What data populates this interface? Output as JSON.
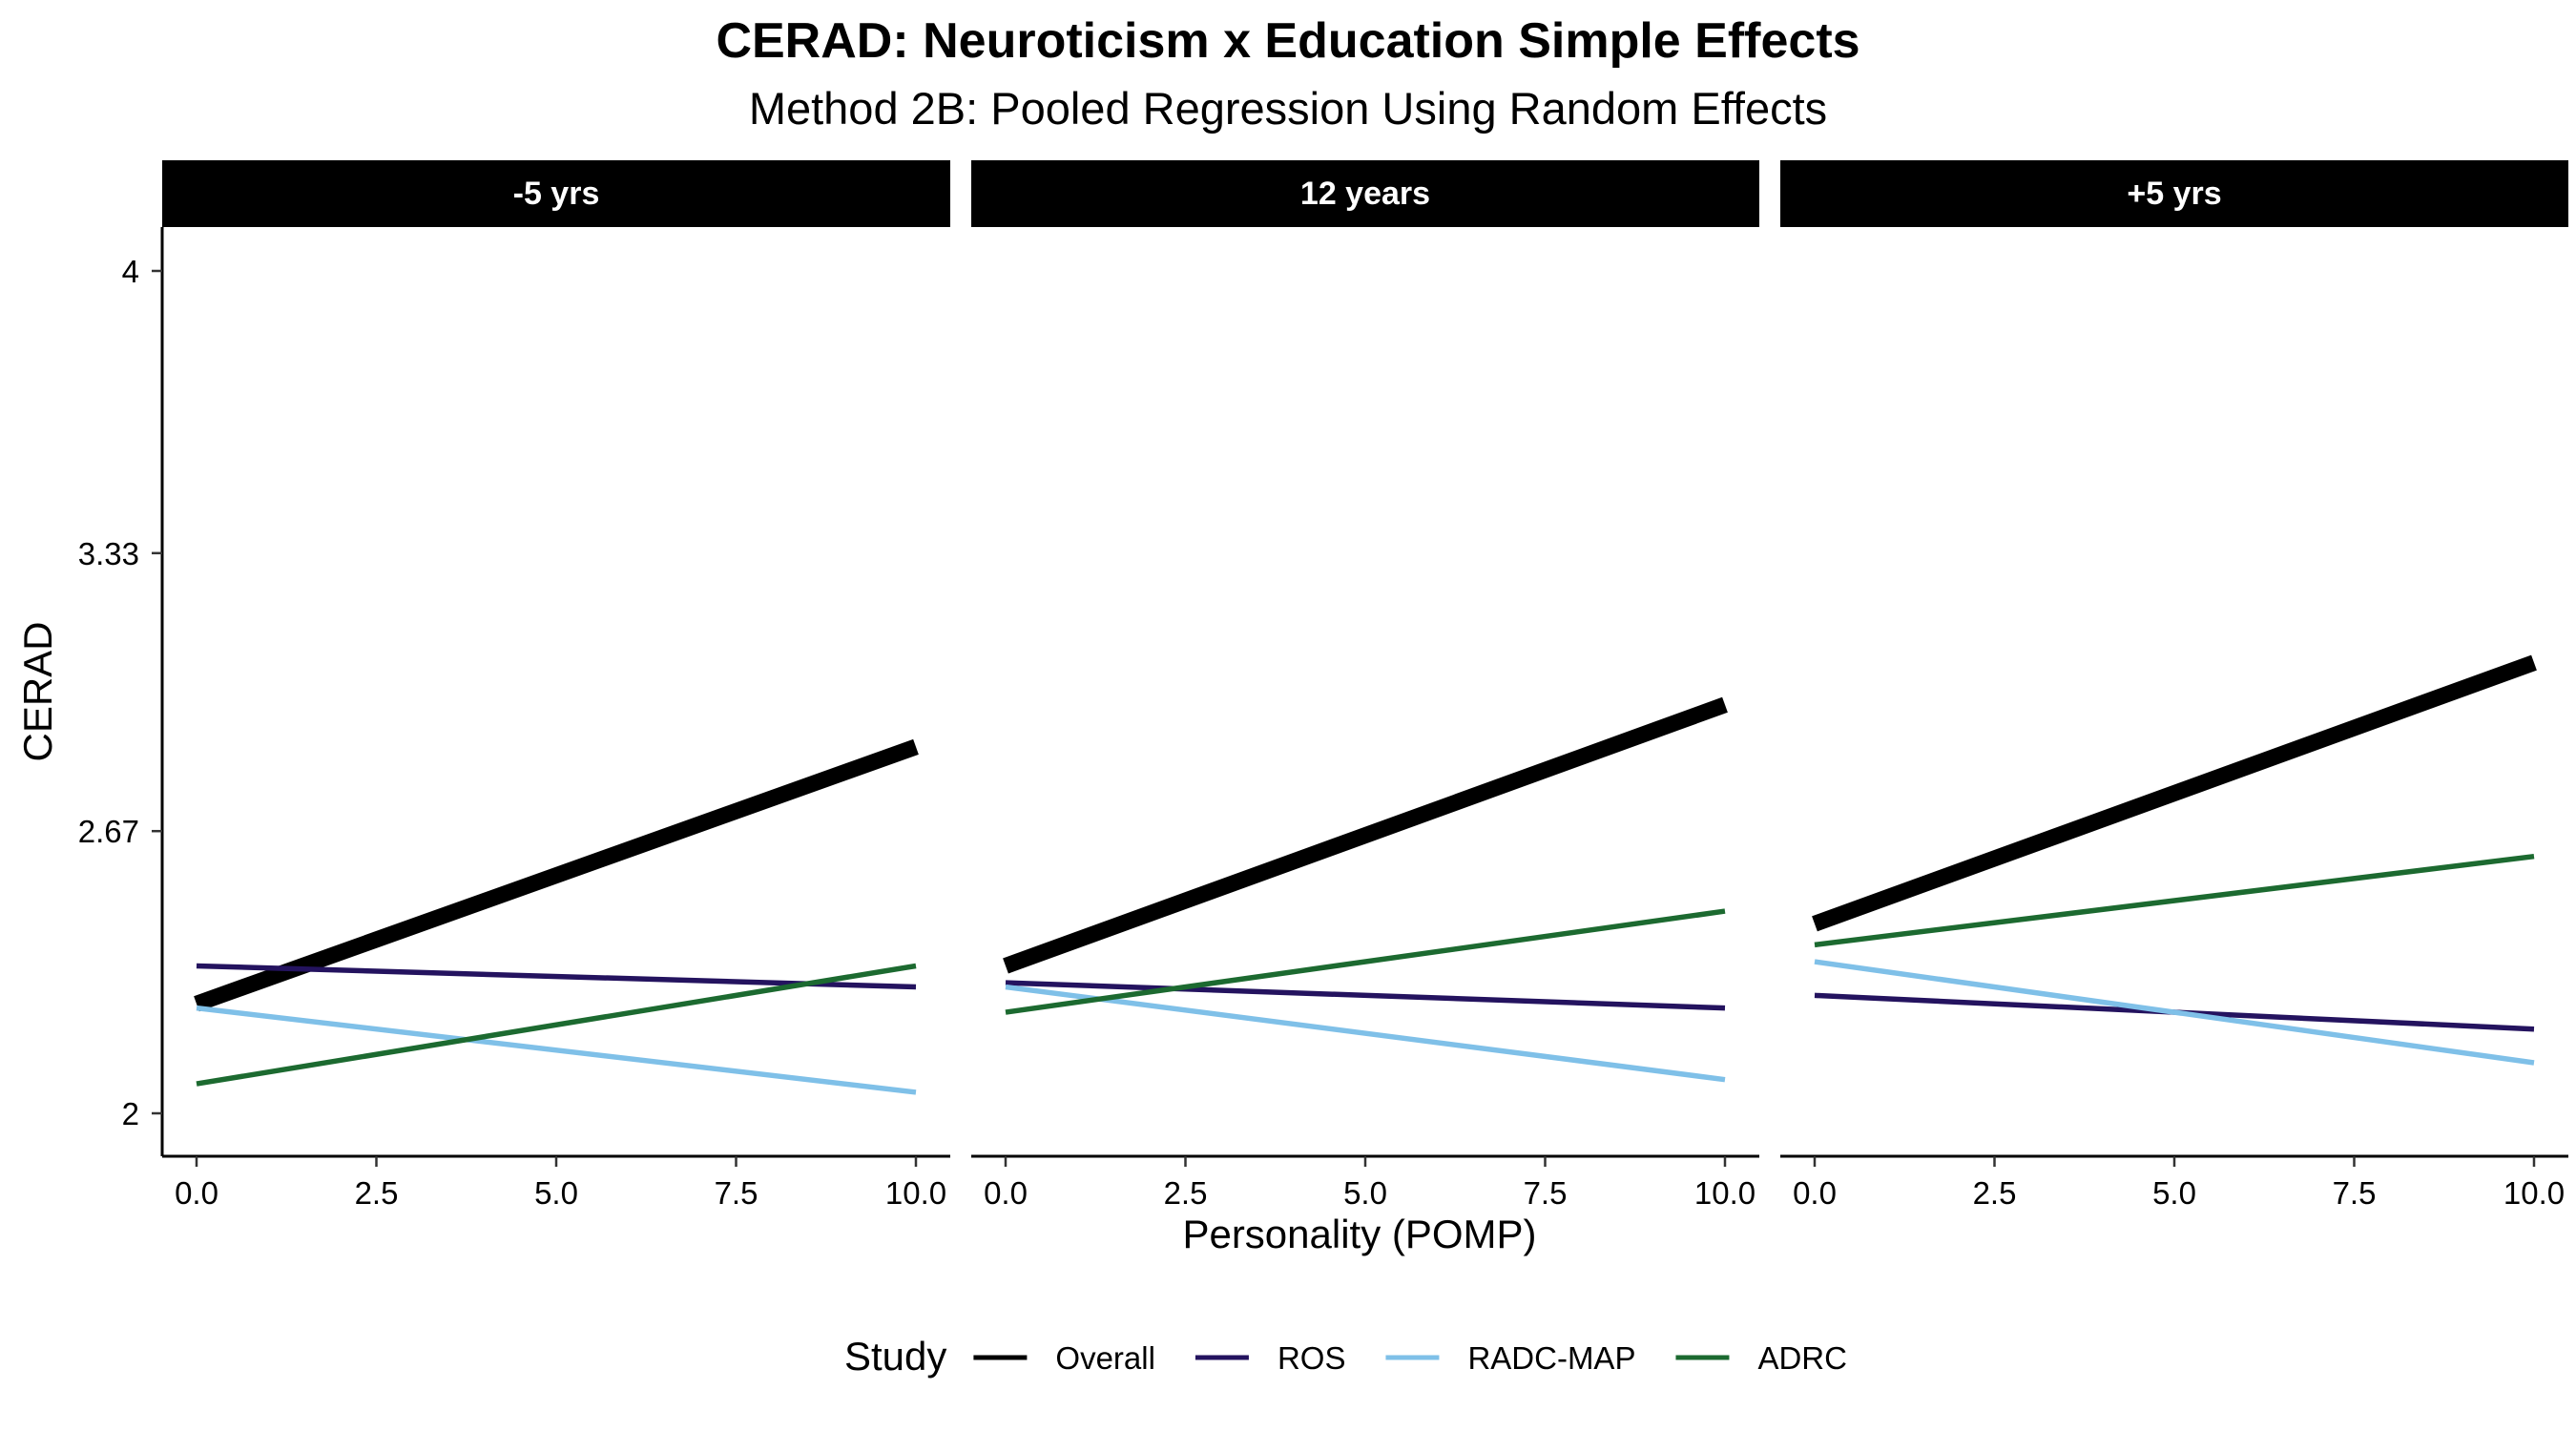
{
  "chart_data": {
    "type": "line",
    "title": "CERAD: Neuroticism x Education Simple Effects",
    "subtitle": "Method 2B: Pooled Regression Using Random Effects",
    "xlabel": "Personality (POMP)",
    "ylabel": "CERAD",
    "xlim": [
      0,
      10
    ],
    "ylim": [
      2,
      4
    ],
    "x_ticks": [
      0,
      2.5,
      5,
      7.5,
      10
    ],
    "x_tick_labels": [
      "0.0",
      "2.5",
      "5.0",
      "7.5",
      "10.0"
    ],
    "y_ticks": [
      2,
      2.67,
      3.33,
      4
    ],
    "y_tick_labels": [
      "2",
      "2.67",
      "3.33",
      "4"
    ],
    "grid": false,
    "legend": {
      "title": "Study",
      "position": "bottom",
      "entries": [
        "Overall",
        "ROS",
        "RADC-MAP",
        "ADRC"
      ]
    },
    "series_styles": [
      {
        "name": "Overall",
        "color": "#000000",
        "emphasis": "thick"
      },
      {
        "name": "ROS",
        "color": "#24135f",
        "emphasis": "normal"
      },
      {
        "name": "RADC-MAP",
        "color": "#7fc0e8",
        "emphasis": "normal"
      },
      {
        "name": "ADRC",
        "color": "#1c6a30",
        "emphasis": "normal"
      }
    ],
    "panels": [
      {
        "label": "-5 yrs",
        "series": [
          {
            "name": "Overall",
            "x": [
              0,
              10
            ],
            "y": [
              2.26,
              2.87
            ]
          },
          {
            "name": "ROS",
            "x": [
              0,
              10
            ],
            "y": [
              2.35,
              2.3
            ]
          },
          {
            "name": "RADC-MAP",
            "x": [
              0,
              10
            ],
            "y": [
              2.25,
              2.05
            ]
          },
          {
            "name": "ADRC",
            "x": [
              0,
              10
            ],
            "y": [
              2.07,
              2.35
            ]
          }
        ]
      },
      {
        "label": "12 years",
        "series": [
          {
            "name": "Overall",
            "x": [
              0,
              10
            ],
            "y": [
              2.35,
              2.97
            ]
          },
          {
            "name": "ROS",
            "x": [
              0,
              10
            ],
            "y": [
              2.31,
              2.25
            ]
          },
          {
            "name": "RADC-MAP",
            "x": [
              0,
              10
            ],
            "y": [
              2.3,
              2.08
            ]
          },
          {
            "name": "ADRC",
            "x": [
              0,
              10
            ],
            "y": [
              2.24,
              2.48
            ]
          }
        ]
      },
      {
        "label": "+5 yrs",
        "series": [
          {
            "name": "Overall",
            "x": [
              0,
              10
            ],
            "y": [
              2.45,
              3.07
            ]
          },
          {
            "name": "ROS",
            "x": [
              0,
              10
            ],
            "y": [
              2.28,
              2.2
            ]
          },
          {
            "name": "RADC-MAP",
            "x": [
              0,
              10
            ],
            "y": [
              2.36,
              2.12
            ]
          },
          {
            "name": "ADRC",
            "x": [
              0,
              10
            ],
            "y": [
              2.4,
              2.61
            ]
          }
        ]
      }
    ]
  }
}
